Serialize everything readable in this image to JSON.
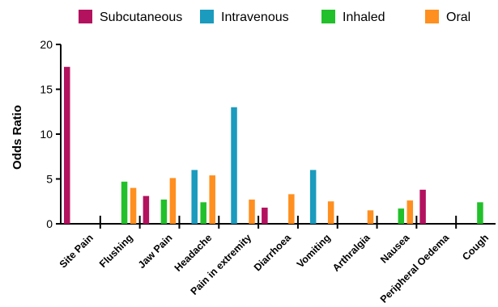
{
  "chart_data": {
    "type": "bar",
    "ylabel": "Odds Ratio",
    "xlabel": "",
    "ylim": [
      0,
      20
    ],
    "yticks": [
      0,
      5,
      10,
      15,
      20
    ],
    "grid": false,
    "legend_position": "top",
    "categories": [
      "Site Pain",
      "Flushing",
      "Jaw Pain",
      "Headache",
      "Pain in extremity",
      "Diarrhoea",
      "Vomiting",
      "Arthralgia",
      "Nausea",
      "Peripheral Oedema",
      "Cough"
    ],
    "series": [
      {
        "name": "Subcutaneous",
        "color": "#b3125f",
        "values": [
          17.5,
          null,
          3.1,
          null,
          null,
          1.8,
          null,
          null,
          null,
          3.8,
          null
        ]
      },
      {
        "name": "Intravenous",
        "color": "#1b9bbd",
        "values": [
          null,
          null,
          null,
          6.0,
          13.0,
          null,
          6.0,
          null,
          null,
          null,
          null
        ]
      },
      {
        "name": "Inhaled",
        "color": "#22c02a",
        "values": [
          null,
          4.7,
          2.7,
          2.4,
          null,
          null,
          null,
          null,
          1.7,
          null,
          2.4
        ]
      },
      {
        "name": "Oral",
        "color": "#ff8f1f",
        "values": [
          null,
          4.0,
          5.1,
          5.4,
          2.7,
          3.3,
          2.5,
          1.5,
          2.6,
          null,
          null
        ]
      }
    ]
  }
}
